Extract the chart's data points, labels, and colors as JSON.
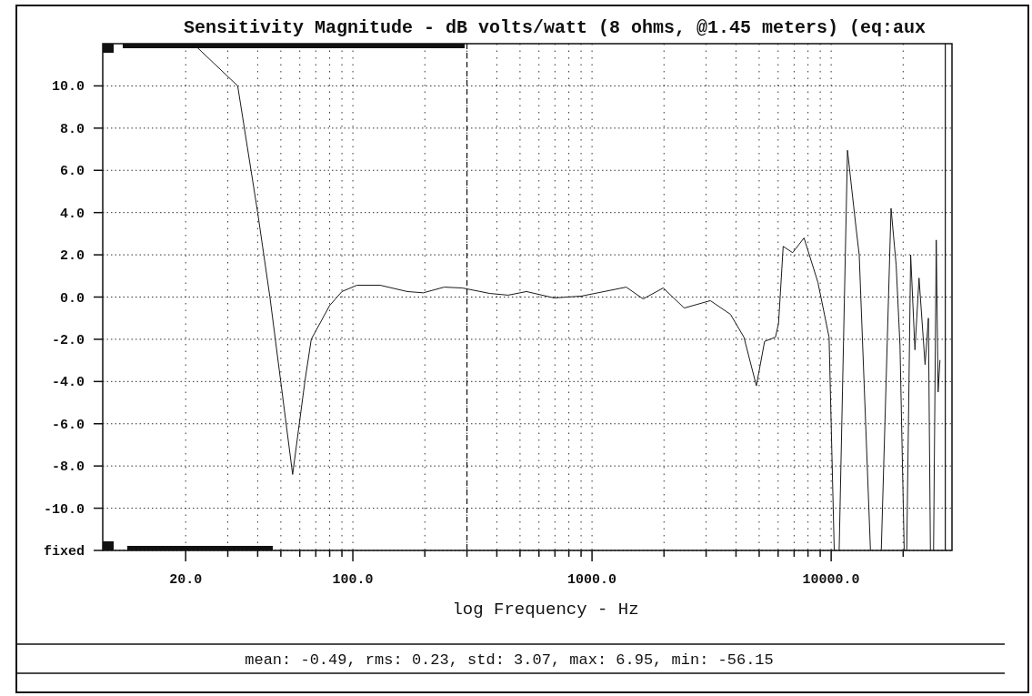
{
  "chart_data": {
    "type": "line",
    "title": "Sensitivity Magnitude - dB volts/watt (8 ohms, @1.45 meters) (eq:aux",
    "xlabel": "log Frequency - Hz",
    "log": "x",
    "x": [
      21.5,
      33,
      40,
      45,
      56,
      63,
      67,
      80,
      90,
      104,
      130,
      169,
      197,
      241,
      287,
      374,
      446,
      532,
      693,
      899,
      1390,
      1636,
      1984,
      2431,
      3124,
      3794,
      4317,
      4866,
      5268,
      5849,
      6025,
      6300,
      6900,
      7700,
      8800,
      9800,
      10300,
      10500,
      10800,
      11700,
      12700,
      13100,
      14600,
      15400,
      16200,
      17800,
      18700,
      19400,
      20200,
      20400,
      20700,
      21500,
      22400,
      23300,
      24700,
      25500,
      26000,
      26400,
      26800,
      27500,
      28000,
      28500
    ],
    "series": [
      {
        "color": "#1a1a1a",
        "values": [
          12,
          10,
          4,
          0,
          -8.4,
          -4,
          -2,
          -0.4,
          0.26,
          0.56,
          0.56,
          0.26,
          0.2,
          0.47,
          0.43,
          0.17,
          0.09,
          0.26,
          -0.04,
          0.04,
          0.47,
          -0.09,
          0.43,
          -0.52,
          -0.17,
          -0.82,
          -1.9,
          -4.2,
          -2.1,
          -1.9,
          -1.25,
          2.4,
          2.1,
          2.8,
          0.7,
          -1.9,
          -12,
          null,
          -12,
          6.95,
          3.3,
          2,
          -12,
          null,
          -12,
          4.2,
          1.5,
          -2.3,
          -12,
          null,
          -12,
          2,
          -2.5,
          0.9,
          -3.2,
          -1,
          -12,
          null,
          -12,
          2.7,
          -4.5,
          -3
        ]
      }
    ],
    "xlim": [
      9,
      32000
    ],
    "ylim": [
      -12,
      12
    ],
    "xticks": [
      {
        "value": 20,
        "label": "20.0"
      },
      {
        "value": 30,
        "label": null
      },
      {
        "value": 40,
        "label": null
      },
      {
        "value": 50,
        "label": null
      },
      {
        "value": 60,
        "label": null
      },
      {
        "value": 70,
        "label": null
      },
      {
        "value": 80,
        "label": null
      },
      {
        "value": 90,
        "label": null
      },
      {
        "value": 100,
        "label": "100.0"
      },
      {
        "value": 200,
        "label": null
      },
      {
        "value": 300,
        "label": null
      },
      {
        "value": 400,
        "label": null
      },
      {
        "value": 500,
        "label": null
      },
      {
        "value": 600,
        "label": null
      },
      {
        "value": 700,
        "label": null
      },
      {
        "value": 800,
        "label": null
      },
      {
        "value": 900,
        "label": null
      },
      {
        "value": 1000,
        "label": "1000.0"
      },
      {
        "value": 2000,
        "label": null
      },
      {
        "value": 3000,
        "label": null
      },
      {
        "value": 4000,
        "label": null
      },
      {
        "value": 5000,
        "label": null
      },
      {
        "value": 6000,
        "label": null
      },
      {
        "value": 7000,
        "label": null
      },
      {
        "value": 8000,
        "label": null
      },
      {
        "value": 9000,
        "label": null
      },
      {
        "value": 10000,
        "label": "10000.0"
      },
      {
        "value": 20000,
        "label": null
      }
    ],
    "yticks": [
      {
        "value": -12,
        "label": "fixed"
      },
      {
        "value": -10,
        "label": "-10.0"
      },
      {
        "value": -8,
        "label": "-8.0"
      },
      {
        "value": -6,
        "label": "-6.0"
      },
      {
        "value": -4,
        "label": "-4.0"
      },
      {
        "value": -2,
        "label": "-2.0"
      },
      {
        "value": 0,
        "label": "0.0"
      },
      {
        "value": 2,
        "label": "2.0"
      },
      {
        "value": 4,
        "label": "4.0"
      },
      {
        "value": 6,
        "label": "6.0"
      },
      {
        "value": 8,
        "label": "8.0"
      },
      {
        "value": 10,
        "label": "10.0"
      }
    ],
    "grid": true,
    "line_style": "solid",
    "marker": "none",
    "ref_lines": [
      {
        "axis": "x",
        "value": 300,
        "line_style": "dashed"
      },
      {
        "axis": "x",
        "value": 30000,
        "line_style": "solid"
      }
    ],
    "annotations": [
      "mean: -0.49, rms: 0.23, std: 3.07, max: 6.95, min: -56.15"
    ]
  }
}
